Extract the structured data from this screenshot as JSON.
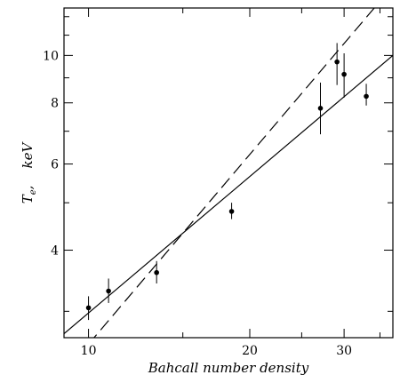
{
  "chart_data": {
    "type": "scatter",
    "xscale": "log",
    "yscale": "log",
    "xlim": [
      9,
      37
    ],
    "ylim": [
      2.65,
      12.5
    ],
    "x_ticks": [
      10,
      20,
      30
    ],
    "x_minor_ticks": [
      10,
      15,
      20,
      25,
      30,
      35
    ],
    "y_ticks": [
      4,
      6,
      8,
      10
    ],
    "y_minor_ticks": [
      3,
      4,
      5,
      6,
      7,
      8,
      9,
      10,
      11,
      12
    ],
    "xlabel": "Bahcall number density",
    "ylabel_main": "T",
    "ylabel_sub": "e",
    "ylabel_rest": ",    keV",
    "grid": false,
    "points": [
      {
        "x": 10.0,
        "y": 3.05,
        "ylo": 2.88,
        "yhi": 3.22
      },
      {
        "x": 10.9,
        "y": 3.3,
        "ylo": 3.12,
        "yhi": 3.5
      },
      {
        "x": 13.4,
        "y": 3.6,
        "ylo": 3.42,
        "yhi": 3.8
      },
      {
        "x": 18.5,
        "y": 4.8,
        "ylo": 4.63,
        "yhi": 5.0
      },
      {
        "x": 27.1,
        "y": 7.8,
        "ylo": 6.9,
        "yhi": 8.8
      },
      {
        "x": 29.1,
        "y": 9.7,
        "ylo": 8.7,
        "yhi": 10.6
      },
      {
        "x": 30.0,
        "y": 9.15,
        "ylo": 8.2,
        "yhi": 10.1
      },
      {
        "x": 33.0,
        "y": 8.25,
        "ylo": 7.9,
        "yhi": 8.75
      }
    ],
    "fits": [
      {
        "style": "solid",
        "x": [
          9.0,
          37.0
        ],
        "y": [
          2.7,
          10.0
        ]
      },
      {
        "style": "dashed",
        "x": [
          10.0,
          35.0
        ],
        "y": [
          2.57,
          12.9
        ]
      }
    ]
  }
}
